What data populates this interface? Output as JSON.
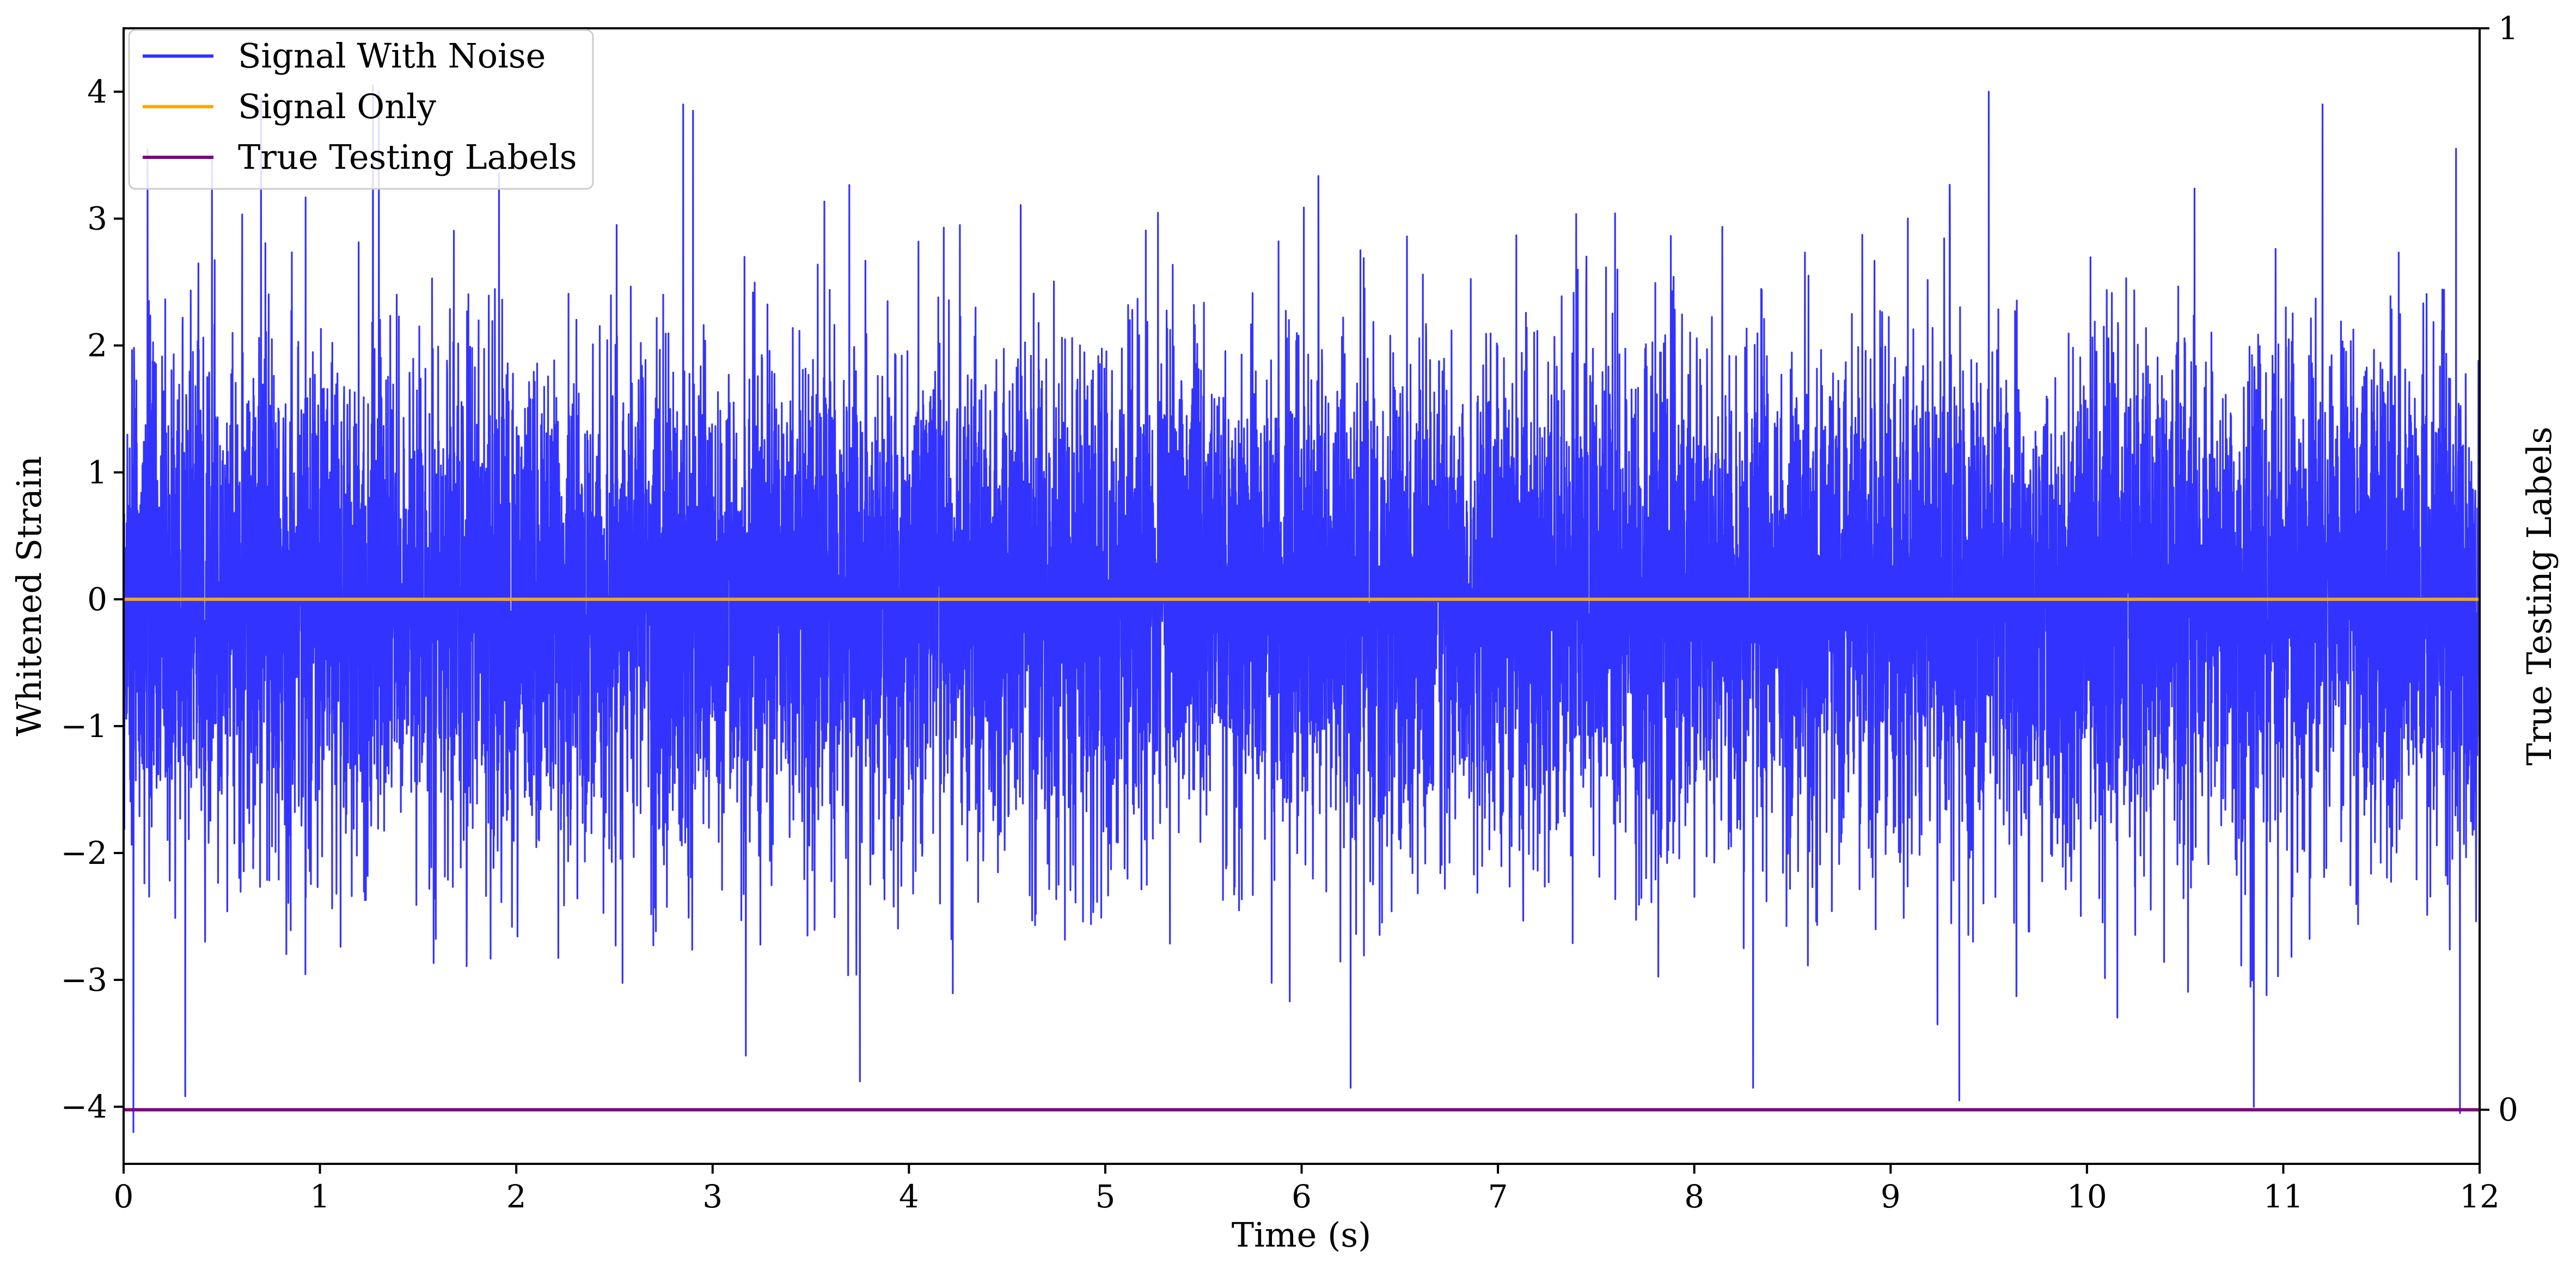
{
  "chart_data": {
    "type": "line",
    "title": "",
    "xlabel": "Time (s)",
    "ylabel": "Whitened Strain",
    "y2label": "True Testing Labels",
    "xlim": [
      0,
      12
    ],
    "ylim": [
      -4.45,
      4.5
    ],
    "y2lim": [
      -0.05,
      1.0
    ],
    "x_ticks": [
      0,
      1,
      2,
      3,
      4,
      5,
      6,
      7,
      8,
      9,
      10,
      11,
      12
    ],
    "x_tick_labels": [
      "0",
      "1",
      "2",
      "3",
      "4",
      "5",
      "6",
      "7",
      "8",
      "9",
      "10",
      "11",
      "12"
    ],
    "y_ticks": [
      -4,
      -3,
      -2,
      -1,
      0,
      1,
      2,
      3,
      4
    ],
    "y_tick_labels": [
      "−4",
      "−3",
      "−2",
      "−1",
      "0",
      "1",
      "2",
      "3",
      "4"
    ],
    "y2_ticks": [
      0,
      1
    ],
    "y2_tick_labels": [
      "0",
      "1"
    ],
    "grid": false,
    "legend_position": "top-left",
    "series": [
      {
        "name": "Signal With Noise",
        "color": "#3333ff",
        "axis": "left",
        "description": "dense whitened noise, roughly unit variance, sampled densely over 0–12 s",
        "mean": 0.0,
        "std": 1.0,
        "range": [
          -4.2,
          4.05
        ],
        "notable_peaks": [
          {
            "x": 0.05,
            "y": -4.2
          },
          {
            "x": 0.45,
            "y": 3.5
          },
          {
            "x": 0.7,
            "y": 3.95
          },
          {
            "x": 1.27,
            "y": 4.05
          },
          {
            "x": 1.3,
            "y": 4.0
          },
          {
            "x": 2.85,
            "y": 3.9
          },
          {
            "x": 2.9,
            "y": 3.85
          },
          {
            "x": 3.75,
            "y": -3.8
          },
          {
            "x": 6.25,
            "y": -3.85
          },
          {
            "x": 8.3,
            "y": -3.85
          },
          {
            "x": 9.35,
            "y": -3.95
          },
          {
            "x": 9.5,
            "y": 4.0
          },
          {
            "x": 10.85,
            "y": -4.0
          },
          {
            "x": 11.2,
            "y": 3.9
          },
          {
            "x": 11.88,
            "y": 3.55
          },
          {
            "x": 11.9,
            "y": -4.05
          }
        ]
      },
      {
        "name": "Signal Only",
        "color": "#ffa500",
        "axis": "left",
        "x": [
          0,
          12
        ],
        "y": [
          0,
          0
        ]
      },
      {
        "name": "True Testing Labels",
        "color": "#800080",
        "axis": "right",
        "x": [
          0,
          12
        ],
        "y": [
          0,
          0
        ]
      }
    ]
  }
}
